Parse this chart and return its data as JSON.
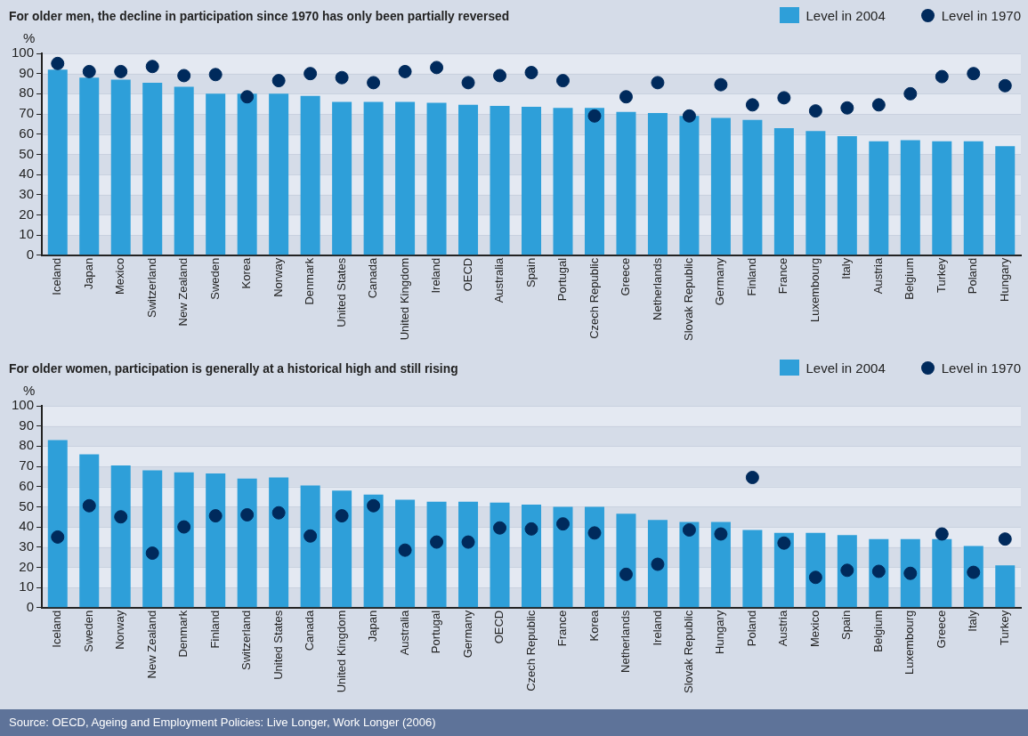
{
  "chart_data": [
    {
      "type": "bar",
      "title": "For older men, the decline in participation since 1970 has only been partially reversed",
      "ylabel": "%",
      "categories": [
        "Iceland",
        "Japan",
        "Mexico",
        "Switzerland",
        "New Zealand",
        "Sweden",
        "Korea",
        "Norway",
        "Denmark",
        "United States",
        "Canada",
        "United Kingdom",
        "Ireland",
        "OECD",
        "Australia",
        "Spain",
        "Portugal",
        "Czech Republic",
        "Greece",
        "Netherlands",
        "Slovak Republic",
        "Germany",
        "Finland",
        "France",
        "Luxembourg",
        "Italy",
        "Austria",
        "Belgium",
        "Turkey",
        "Poland",
        "Hungary"
      ],
      "series": [
        {
          "name": "Level in 2004",
          "type": "bar",
          "color": "#2e9fd9",
          "values": [
            92,
            88,
            87,
            85.5,
            83.5,
            80,
            80,
            80,
            79,
            76,
            76,
            76,
            75.5,
            74.5,
            74,
            73.5,
            73,
            73,
            71,
            70.5,
            69,
            68,
            67,
            63,
            61.5,
            59,
            56.5,
            57,
            56.5,
            56.5,
            54
          ]
        },
        {
          "name": "Level in 1970",
          "type": "scatter",
          "color": "#002a5c",
          "x": [
            "Iceland",
            "Japan",
            "Mexico",
            "Switzerland",
            "New Zealand",
            "Sweden",
            "Korea",
            "Norway",
            "Denmark",
            "United States",
            "Canada",
            "United Kingdom",
            "Ireland",
            "OECD",
            "Australia",
            "Spain",
            "Portugal",
            "Czech Republic",
            "Greece",
            "Netherlands",
            "Slovak Republic",
            "Germany",
            "Finland",
            "France",
            "Luxembourg",
            "Italy",
            "Austria",
            "Belgium",
            "Turkey",
            "Poland",
            "Hungary"
          ],
          "values": [
            95,
            91,
            91,
            93.5,
            89,
            89.5,
            78.5,
            86.5,
            90,
            88,
            85.5,
            91,
            93,
            85.5,
            89,
            90.5,
            86.5,
            69,
            78.5,
            85.5,
            69,
            84.5,
            74.5,
            78,
            71.5,
            73,
            74.5,
            80,
            88.5,
            90,
            84
          ]
        }
      ],
      "ylim": [
        0,
        100
      ],
      "yticks": [
        0,
        10,
        20,
        30,
        40,
        50,
        60,
        70,
        80,
        90,
        100
      ],
      "grid": "y",
      "legend": "top right",
      "marker": "circle"
    },
    {
      "type": "bar",
      "title": "For older women, participation is generally at a historical high and still rising",
      "ylabel": "%",
      "categories": [
        "Iceland",
        "Sweden",
        "Norway",
        "New Zealand",
        "Denmark",
        "Finland",
        "Switzerland",
        "United States",
        "Canada",
        "United Kingdom",
        "Japan",
        "Australia",
        "Portugal",
        "Germany",
        "OECD",
        "Czech Republic",
        "France",
        "Korea",
        "Netherlands",
        "Ireland",
        "Slovak Republic",
        "Hungary",
        "Poland",
        "Austria",
        "Mexico",
        "Spain",
        "Belgium",
        "Luxembourg",
        "Greece",
        "Italy",
        "Turkey"
      ],
      "series": [
        {
          "name": "Level in 2004",
          "type": "bar",
          "color": "#2e9fd9",
          "values": [
            83,
            76,
            70.5,
            68,
            67,
            66.5,
            64,
            64.5,
            60.5,
            58,
            56,
            53.5,
            52.5,
            52.5,
            52,
            51,
            50,
            50,
            46.5,
            43.5,
            42.5,
            42.5,
            38.5,
            37,
            37,
            36,
            34,
            34,
            34,
            30.5,
            21
          ]
        },
        {
          "name": "Level in 1970",
          "type": "scatter",
          "color": "#002a5c",
          "x": [
            "Iceland",
            "Sweden",
            "Norway",
            "New Zealand",
            "Denmark",
            "Finland",
            "Switzerland",
            "United States",
            "Canada",
            "United Kingdom",
            "Japan",
            "Australia",
            "Portugal",
            "Germany",
            "OECD",
            "Czech Republic",
            "France",
            "Korea",
            "Netherlands",
            "Ireland",
            "Slovak Republic",
            "Hungary",
            "Poland",
            "Austria",
            "Mexico",
            "Spain",
            "Belgium",
            "Luxembourg",
            "Greece",
            "Italy",
            "Turkey"
          ],
          "values": [
            35,
            50.5,
            45,
            27,
            40,
            45.5,
            46,
            47,
            35.5,
            45.5,
            50.5,
            28.5,
            32.5,
            32.5,
            39.5,
            39,
            41.5,
            37,
            16.5,
            21.5,
            38.5,
            36.5,
            64.5,
            32,
            15,
            18.5,
            18,
            17,
            36.5,
            17.5,
            34
          ]
        }
      ],
      "ylim": [
        0,
        100
      ],
      "yticks": [
        0,
        10,
        20,
        30,
        40,
        50,
        60,
        70,
        80,
        90,
        100
      ],
      "grid": "y",
      "legend": "top right",
      "marker": "circle",
      "annotations": [
        "Source: OECD, Ageing and Employment Policies: Live Longer, Work Longer (2006)"
      ]
    }
  ]
}
